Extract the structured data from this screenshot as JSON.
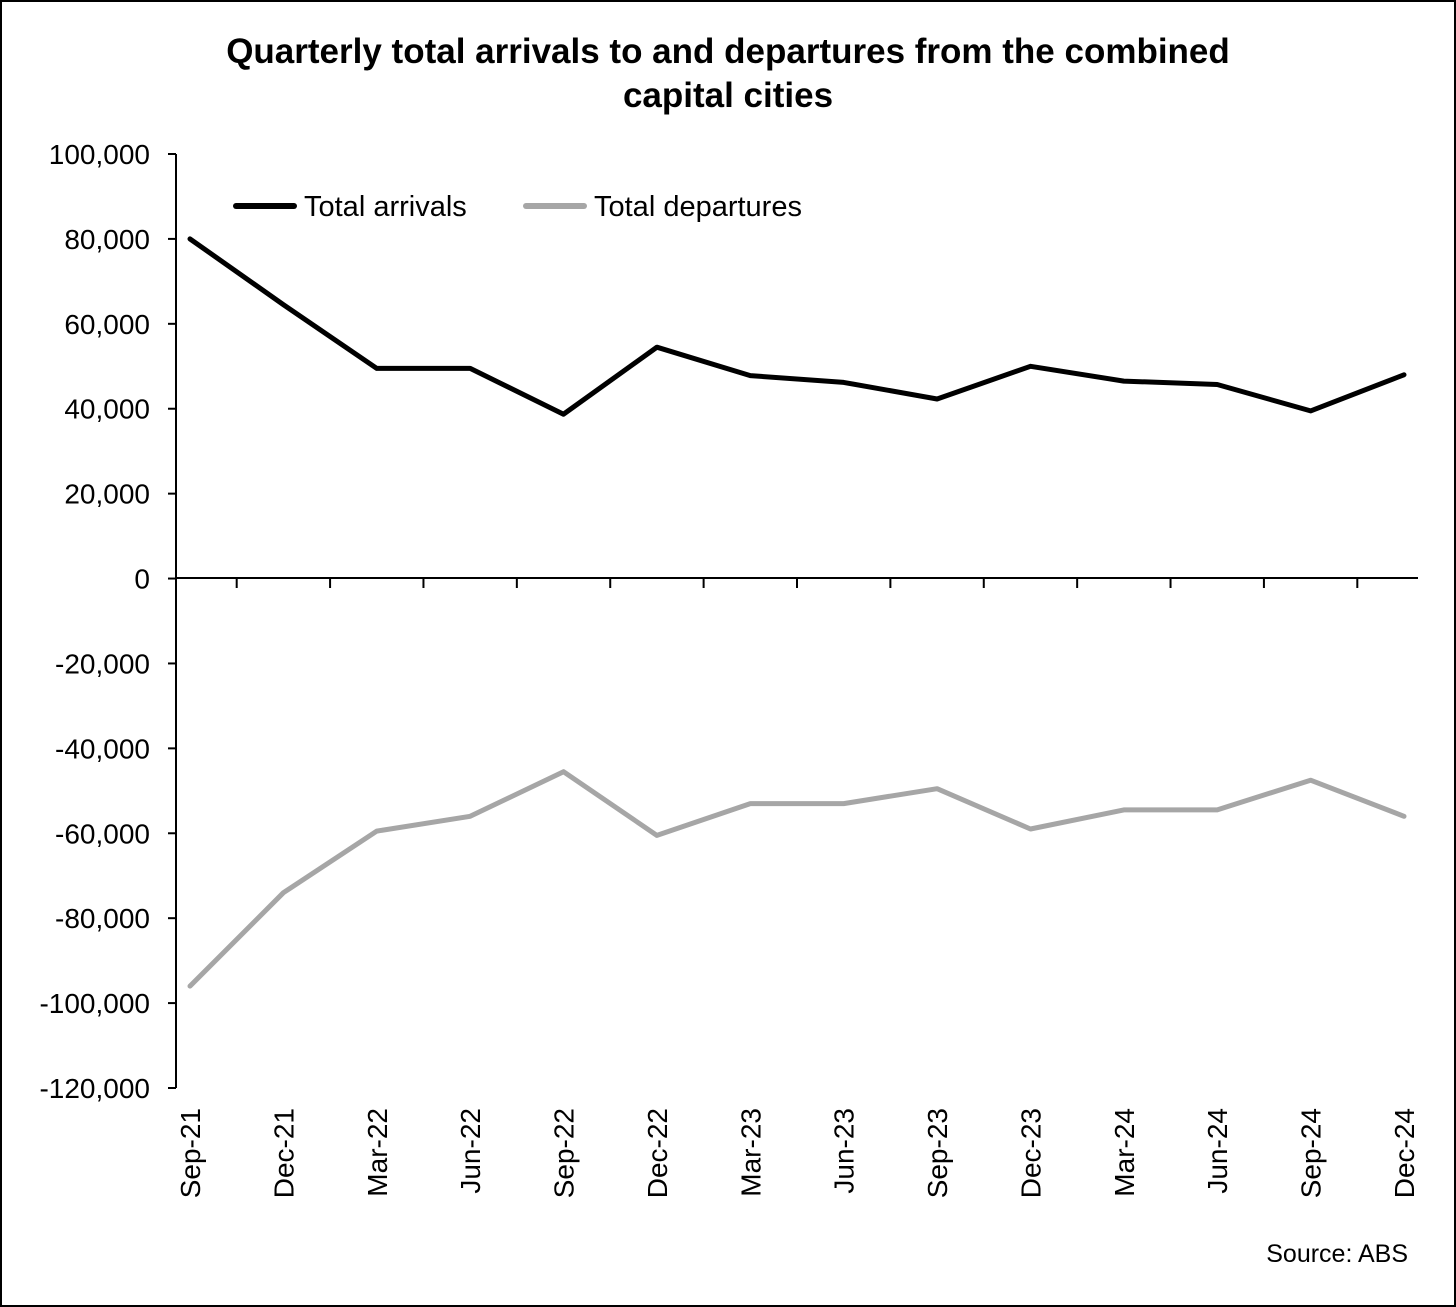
{
  "chart_data": {
    "type": "line",
    "title_line1": "Quarterly total arrivals to and departures from the combined",
    "title_line2": "capital cities",
    "xlabel": "",
    "ylabel": "",
    "ylim": [
      -120000,
      100000
    ],
    "yticks": [
      "100,000",
      "80,000",
      "60,000",
      "40,000",
      "20,000",
      "0",
      "-20,000",
      "-40,000",
      "-60,000",
      "-80,000",
      "-100,000",
      "-120,000"
    ],
    "ytick_values": [
      100000,
      80000,
      60000,
      40000,
      20000,
      0,
      -20000,
      -40000,
      -60000,
      -80000,
      -100000,
      -120000
    ],
    "categories": [
      "Sep-21",
      "Dec-21",
      "Mar-22",
      "Jun-22",
      "Sep-22",
      "Dec-22",
      "Mar-23",
      "Jun-23",
      "Sep-23",
      "Dec-23",
      "Mar-24",
      "Jun-24",
      "Sep-24",
      "Dec-24"
    ],
    "series": [
      {
        "name": "Total arrivals",
        "color": "#000000",
        "values": [
          80000,
          64500,
          49500,
          49500,
          38700,
          54500,
          47800,
          46200,
          42300,
          50000,
          46500,
          45700,
          39500,
          48000
        ]
      },
      {
        "name": "Total departures",
        "color": "#a6a6a6",
        "values": [
          -96000,
          -74000,
          -59500,
          -56000,
          -45500,
          -60500,
          -53000,
          -53000,
          -49500,
          -59000,
          -54500,
          -54500,
          -47500,
          -56000
        ]
      }
    ],
    "grid": false,
    "legend_position": "top-left",
    "source": "Source: ABS"
  }
}
